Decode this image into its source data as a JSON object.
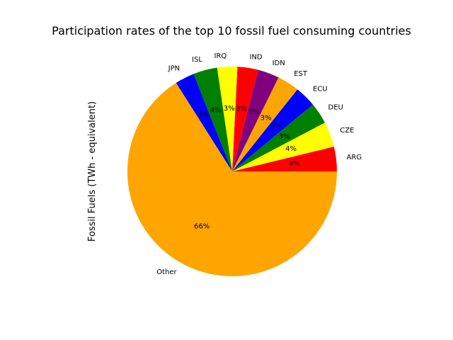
{
  "chart_data": {
    "type": "pie",
    "title": "Participation rates of the top 10 fossil fuel consuming countries",
    "ylabel": "Fossil Fuels (TWh - equivalent)",
    "xlabel": "",
    "start_angle_deg": 0,
    "direction": "counterclockwise",
    "slices": [
      {
        "label": "ARG",
        "value": 3.8,
        "pct_label": "4%",
        "color": "#ff0000"
      },
      {
        "label": "CZE",
        "value": 3.9,
        "pct_label": "4%",
        "color": "#ffff00"
      },
      {
        "label": "DEU",
        "value": 3.3,
        "pct_label": "3%",
        "color": "#008000"
      },
      {
        "label": "ECU",
        "value": 3.3,
        "pct_label": "3%",
        "color": "#0000ff"
      },
      {
        "label": "EST",
        "value": 3.4,
        "pct_label": "3%",
        "color": "#ffa500"
      },
      {
        "label": "IDN",
        "value": 3.3,
        "pct_label": "3%",
        "color": "#800080"
      },
      {
        "label": "IND",
        "value": 3.2,
        "pct_label": "3%",
        "color": "#ff0000"
      },
      {
        "label": "IRQ",
        "value": 3.1,
        "pct_label": "3%",
        "color": "#ffff00"
      },
      {
        "label": "ISL",
        "value": 3.7,
        "pct_label": "4%",
        "color": "#008000"
      },
      {
        "label": "JPN",
        "value": 3.0,
        "pct_label": "3%",
        "color": "#0000ff"
      },
      {
        "label": "Other",
        "value": 66.0,
        "pct_label": "66%",
        "color": "#ffa500"
      }
    ]
  }
}
